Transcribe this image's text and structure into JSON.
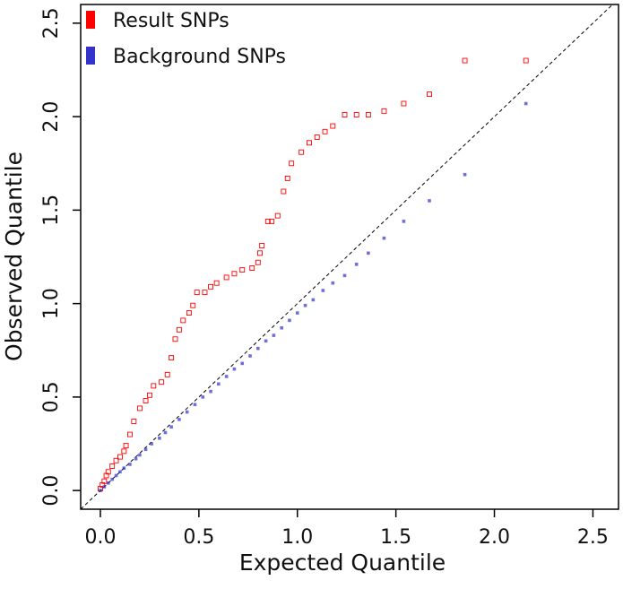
{
  "chart_data": {
    "type": "scatter",
    "x_label": "Expected Quantile",
    "y_label": "Observed Quantile",
    "xlim": [
      -0.1,
      2.63
    ],
    "ylim": [
      -0.1,
      2.6
    ],
    "xticks": [
      {
        "value": 0,
        "label": "0.0"
      },
      0.5,
      {
        "value": 1,
        "label": "1.0"
      },
      1.5,
      {
        "value": 2,
        "label": "2.0"
      },
      2.5
    ],
    "yticks": [
      {
        "value": 0,
        "label": "0.0"
      },
      0.5,
      {
        "value": 1,
        "label": "1.0"
      },
      1.5,
      {
        "value": 2,
        "label": "2.0"
      },
      2.5
    ],
    "legend": "top-left",
    "series": [
      {
        "name": "Result SNPs",
        "color": "#ff0000",
        "x": [
          0,
          0.01,
          0.02,
          0.03,
          0.04,
          0.06,
          0.08,
          0.1,
          0.12,
          0.13,
          0.15,
          0.17,
          0.2,
          0.23,
          0.25,
          0.27,
          0.31,
          0.34,
          0.36,
          0.38,
          0.4,
          0.42,
          0.45,
          0.47,
          0.49,
          0.53,
          0.56,
          0.59,
          0.64,
          0.68,
          0.72,
          0.77,
          0.8,
          0.81,
          0.82,
          0.85,
          0.87,
          0.9,
          0.93,
          0.95,
          0.97,
          1.02,
          1.06,
          1.1,
          1.14,
          1.18,
          1.24,
          1.3,
          1.36,
          1.44,
          1.54,
          1.67,
          1.85,
          2.16
        ],
        "y": [
          0.01,
          0.03,
          0.05,
          0.08,
          0.1,
          0.13,
          0.16,
          0.18,
          0.21,
          0.24,
          0.3,
          0.37,
          0.44,
          0.48,
          0.51,
          0.56,
          0.58,
          0.62,
          0.71,
          0.81,
          0.86,
          0.91,
          0.95,
          0.99,
          1.06,
          1.06,
          1.09,
          1.11,
          1.14,
          1.16,
          1.18,
          1.19,
          1.22,
          1.27,
          1.31,
          1.44,
          1.44,
          1.47,
          1.6,
          1.67,
          1.75,
          1.81,
          1.86,
          1.89,
          1.92,
          1.95,
          2.01,
          2.01,
          2.01,
          2.03,
          2.07,
          2.12,
          2.3,
          2.3
        ]
      },
      {
        "name": "Background SNPs",
        "color": "#3333cc",
        "x": [
          0,
          0.02,
          0.04,
          0.06,
          0.08,
          0.1,
          0.12,
          0.15,
          0.18,
          0.2,
          0.23,
          0.26,
          0.3,
          0.33,
          0.36,
          0.4,
          0.44,
          0.48,
          0.52,
          0.56,
          0.6,
          0.64,
          0.68,
          0.72,
          0.76,
          0.8,
          0.84,
          0.88,
          0.92,
          0.96,
          1.0,
          1.04,
          1.08,
          1.13,
          1.18,
          1.24,
          1.3,
          1.36,
          1.44,
          1.54,
          1.67,
          1.85,
          2.16
        ],
        "y": [
          0,
          0.02,
          0.04,
          0.06,
          0.08,
          0.1,
          0.12,
          0.14,
          0.17,
          0.19,
          0.22,
          0.25,
          0.28,
          0.31,
          0.34,
          0.38,
          0.42,
          0.46,
          0.5,
          0.53,
          0.57,
          0.61,
          0.65,
          0.68,
          0.72,
          0.76,
          0.8,
          0.83,
          0.87,
          0.91,
          0.95,
          0.99,
          1.02,
          1.07,
          1.11,
          1.15,
          1.21,
          1.27,
          1.35,
          1.44,
          1.55,
          1.69,
          2.07
        ]
      }
    ]
  }
}
